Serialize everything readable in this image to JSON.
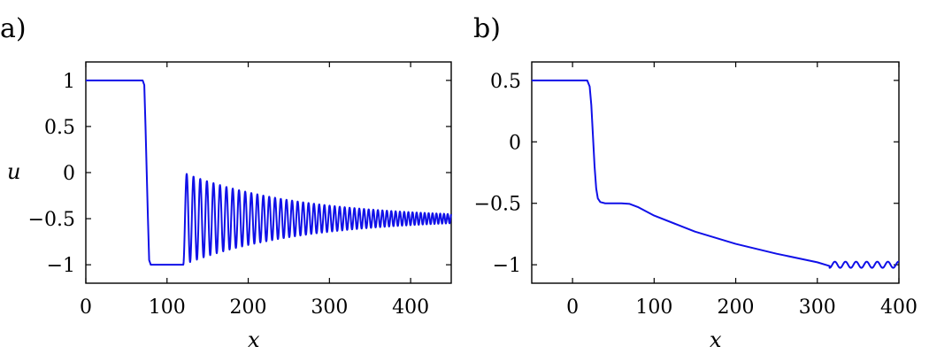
{
  "chart_data": [
    {
      "type": "line",
      "panel_label": "a)",
      "xlabel": "x",
      "ylabel": "u",
      "xlim": [
        0,
        450
      ],
      "ylim": [
        -1.2,
        1.2
      ],
      "xticks": [
        0,
        100,
        200,
        300,
        400
      ],
      "xtick_labels": [
        "0",
        "100",
        "200",
        "300",
        "400"
      ],
      "yticks": [
        1,
        0.5,
        0,
        -0.5,
        -1
      ],
      "ytick_labels": [
        "1",
        "0.5",
        "0",
        "−0.5",
        "−1"
      ],
      "series": [
        {
          "name": "u",
          "color": "#1010e8",
          "description": "u = 1 for x < 72, sharp drop to -1 near x = 75, flat at -1 until x = 120, then oscillations about -0.5 with amplitude decaying from 0.5 to ~0.05 and wavelength shrinking toward x = 450",
          "points": [
            [
              0,
              1
            ],
            [
              70,
              1
            ],
            [
              72,
              0.95
            ],
            [
              73.5,
              0.5
            ],
            [
              75,
              0
            ],
            [
              76.5,
              -0.5
            ],
            [
              78,
              -0.95
            ],
            [
              80,
              -1
            ],
            [
              120,
              -1
            ]
          ],
          "oscillation": {
            "x_start": 120,
            "x_end": 450,
            "center": -0.5,
            "amp_start": 0.5,
            "amp_end": 0.05,
            "wavelength_start": 8.5,
            "wavelength_end": 4.5
          }
        }
      ]
    },
    {
      "type": "line",
      "panel_label": "b)",
      "xlabel": "x",
      "ylabel": "",
      "xlim": [
        -50,
        400
      ],
      "ylim": [
        -1.15,
        0.65
      ],
      "xticks": [
        0,
        100,
        200,
        300,
        400
      ],
      "xtick_labels": [
        "0",
        "100",
        "200",
        "300",
        "400"
      ],
      "yticks": [
        0.5,
        0,
        -0.5,
        -1
      ],
      "ytick_labels": [
        "0.5",
        "0",
        "−0.5",
        "−1"
      ],
      "series": [
        {
          "name": "u",
          "color": "#1010e8",
          "description": "u = 0.5 until x = 20, drop to -0.5 near x = 30, plateau to x = 70, then gradual decrease to -1 at x = 315 followed by small oscillations",
          "points": [
            [
              -50,
              0.5
            ],
            [
              18,
              0.5
            ],
            [
              21,
              0.45
            ],
            [
              23,
              0.3
            ],
            [
              25,
              0.05
            ],
            [
              27,
              -0.2
            ],
            [
              29,
              -0.38
            ],
            [
              31,
              -0.46
            ],
            [
              34,
              -0.49
            ],
            [
              40,
              -0.5
            ],
            [
              60,
              -0.5
            ],
            [
              70,
              -0.505
            ],
            [
              80,
              -0.53
            ],
            [
              100,
              -0.6
            ],
            [
              150,
              -0.73
            ],
            [
              200,
              -0.83
            ],
            [
              250,
              -0.91
            ],
            [
              300,
              -0.98
            ],
            [
              315,
              -1.01
            ]
          ],
          "oscillation": {
            "x_start": 315,
            "x_end": 400,
            "center": -1.0,
            "amp_start": 0.025,
            "amp_end": 0.025,
            "wavelength_start": 13,
            "wavelength_end": 13
          }
        }
      ]
    }
  ]
}
